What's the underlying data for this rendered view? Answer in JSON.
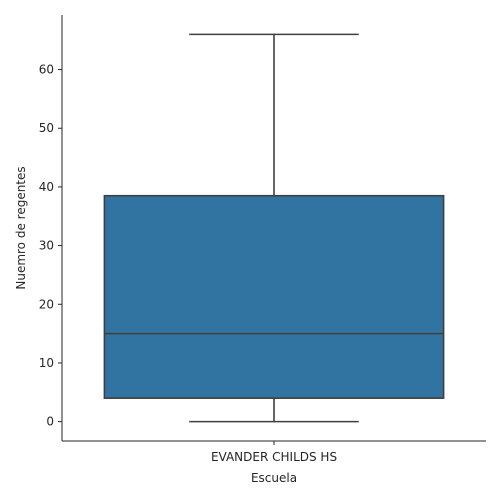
{
  "chart_data": {
    "type": "box",
    "categories": [
      "EVANDER CHILDS HS"
    ],
    "boxes": [
      {
        "category": "EVANDER CHILDS HS",
        "whisker_low": 0,
        "q1": 4,
        "median": 15,
        "q3": 38.5,
        "whisker_high": 66
      }
    ],
    "xlabel": "Escuela",
    "ylabel": "Nuemro de regentes",
    "ylim": [
      -3.3,
      69.3
    ],
    "yticks": [
      0,
      10,
      20,
      30,
      40,
      50,
      60
    ],
    "grid": false,
    "box_color": "#3274a1",
    "line_color": "#3f3f3f"
  }
}
